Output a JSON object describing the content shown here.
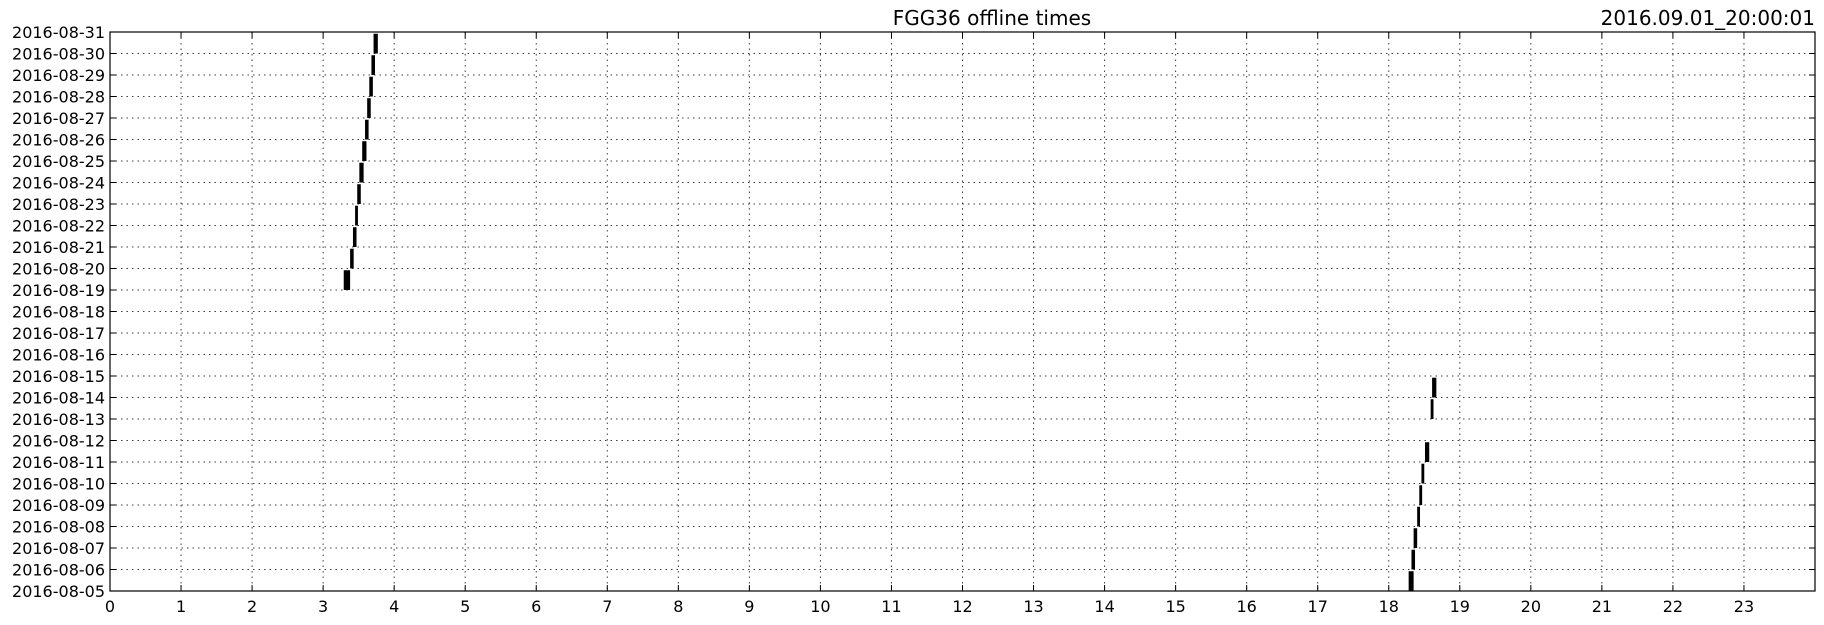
{
  "chart_data": {
    "type": "bar",
    "title": "FGG36 offline times",
    "timestamp": "2016.09.01_20:00:01",
    "xlabel": "",
    "ylabel": "",
    "xlim": [
      0,
      24
    ],
    "x_ticks": [
      "0",
      "1",
      "2",
      "3",
      "4",
      "5",
      "6",
      "7",
      "8",
      "9",
      "10",
      "11",
      "12",
      "13",
      "14",
      "15",
      "16",
      "17",
      "18",
      "19",
      "20",
      "21",
      "22",
      "23"
    ],
    "y_ticks": [
      "2016-08-05",
      "2016-08-06",
      "2016-08-07",
      "2016-08-08",
      "2016-08-09",
      "2016-08-10",
      "2016-08-11",
      "2016-08-12",
      "2016-08-13",
      "2016-08-14",
      "2016-08-15",
      "2016-08-16",
      "2016-08-17",
      "2016-08-18",
      "2016-08-19",
      "2016-08-20",
      "2016-08-21",
      "2016-08-22",
      "2016-08-23",
      "2016-08-24",
      "2016-08-25",
      "2016-08-26",
      "2016-08-27",
      "2016-08-28",
      "2016-08-29",
      "2016-08-30",
      "2016-08-31"
    ],
    "grid": true,
    "bar_color": "#000000",
    "series": [
      {
        "values": [
          {
            "date": "2016-08-05",
            "start_hour": 18.28,
            "end_hour": 18.35
          },
          {
            "date": "2016-08-06",
            "start_hour": 18.32,
            "end_hour": 18.37
          },
          {
            "date": "2016-08-07",
            "start_hour": 18.35,
            "end_hour": 18.4
          },
          {
            "date": "2016-08-08",
            "start_hour": 18.4,
            "end_hour": 18.44
          },
          {
            "date": "2016-08-09",
            "start_hour": 18.43,
            "end_hour": 18.47
          },
          {
            "date": "2016-08-10",
            "start_hour": 18.46,
            "end_hour": 18.5
          },
          {
            "date": "2016-08-11",
            "start_hour": 18.51,
            "end_hour": 18.57
          },
          {
            "date": "2016-08-13",
            "start_hour": 18.59,
            "end_hour": 18.63
          },
          {
            "date": "2016-08-14",
            "start_hour": 18.61,
            "end_hour": 18.67
          },
          {
            "date": "2016-08-19",
            "start_hour": 3.29,
            "end_hour": 3.38
          },
          {
            "date": "2016-08-20",
            "start_hour": 3.38,
            "end_hour": 3.43
          },
          {
            "date": "2016-08-21",
            "start_hour": 3.42,
            "end_hour": 3.47
          },
          {
            "date": "2016-08-22",
            "start_hour": 3.45,
            "end_hour": 3.49
          },
          {
            "date": "2016-08-23",
            "start_hour": 3.48,
            "end_hour": 3.53
          },
          {
            "date": "2016-08-24",
            "start_hour": 3.51,
            "end_hour": 3.57
          },
          {
            "date": "2016-08-25",
            "start_hour": 3.55,
            "end_hour": 3.61
          },
          {
            "date": "2016-08-26",
            "start_hour": 3.59,
            "end_hour": 3.64
          },
          {
            "date": "2016-08-27",
            "start_hour": 3.62,
            "end_hour": 3.67
          },
          {
            "date": "2016-08-28",
            "start_hour": 3.65,
            "end_hour": 3.7
          },
          {
            "date": "2016-08-29",
            "start_hour": 3.68,
            "end_hour": 3.73
          },
          {
            "date": "2016-08-30",
            "start_hour": 3.71,
            "end_hour": 3.77
          },
          {
            "date": "2016-08-31",
            "start_hour": 3.75,
            "end_hour": 3.81
          }
        ]
      }
    ]
  }
}
